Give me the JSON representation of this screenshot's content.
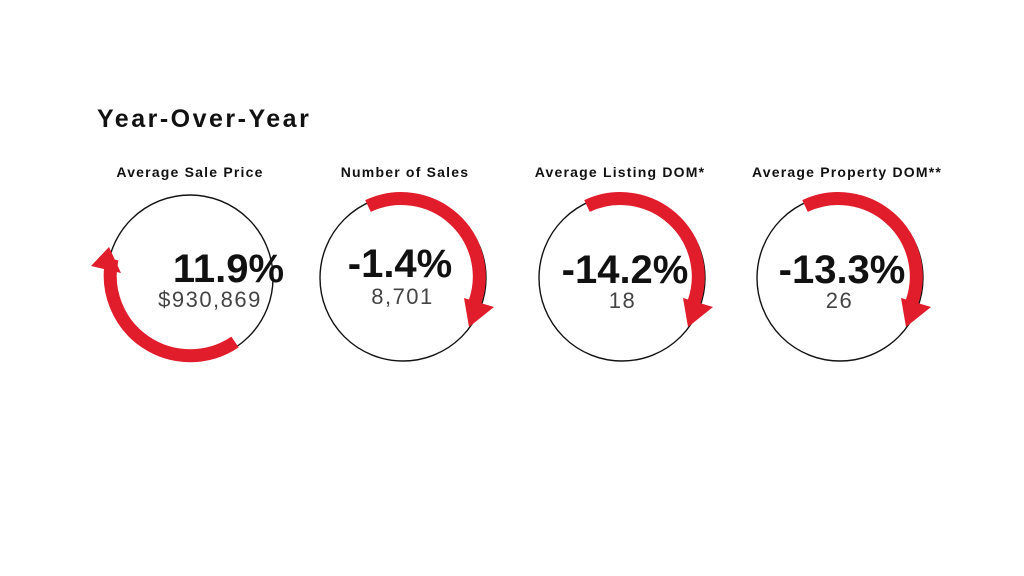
{
  "title": "Year-Over-Year",
  "colors": {
    "arrow": "#e11d2b",
    "text": "#111111",
    "value": "#444444",
    "ring": "#111111"
  },
  "metrics": [
    {
      "label": "Average Sale Price",
      "change": "11.9%",
      "value": "$930,869",
      "direction": "up"
    },
    {
      "label": "Number of Sales",
      "change": "-1.4%",
      "value": "8,701",
      "direction": "down"
    },
    {
      "label": "Average Listing DOM*",
      "change": "-14.2%",
      "value": "18",
      "direction": "down"
    },
    {
      "label": "Average Property DOM**",
      "change": "-13.3%",
      "value": "26",
      "direction": "down"
    }
  ]
}
